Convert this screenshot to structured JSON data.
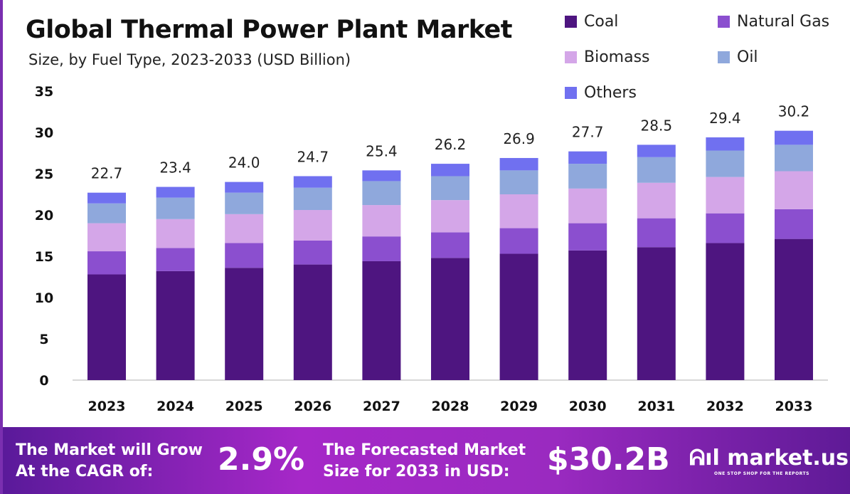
{
  "chart_data": {
    "type": "bar",
    "stacked": true,
    "title": "Global Thermal Power Plant Market",
    "subtitle": "Size, by Fuel Type, 2023-2033 (USD Billion)",
    "categories": [
      "2023",
      "2024",
      "2025",
      "2026",
      "2027",
      "2028",
      "2029",
      "2030",
      "2031",
      "2032",
      "2033"
    ],
    "series": [
      {
        "name": "Coal",
        "color": "#4e1580",
        "values": [
          12.8,
          13.2,
          13.6,
          14.0,
          14.4,
          14.8,
          15.3,
          15.7,
          16.1,
          16.6,
          17.1
        ]
      },
      {
        "name": "Natural Gas",
        "color": "#8b4fcf",
        "values": [
          2.8,
          2.8,
          3.0,
          2.9,
          3.0,
          3.1,
          3.1,
          3.3,
          3.5,
          3.6,
          3.6
        ]
      },
      {
        "name": "Biomass",
        "color": "#d4a6e8",
        "values": [
          3.4,
          3.5,
          3.5,
          3.7,
          3.8,
          3.9,
          4.1,
          4.2,
          4.3,
          4.4,
          4.6
        ]
      },
      {
        "name": "Oil",
        "color": "#8fa8dc",
        "values": [
          2.4,
          2.6,
          2.6,
          2.7,
          2.9,
          2.9,
          2.9,
          3.0,
          3.1,
          3.2,
          3.2
        ]
      },
      {
        "name": "Others",
        "color": "#7070f0",
        "values": [
          1.3,
          1.3,
          1.3,
          1.4,
          1.3,
          1.5,
          1.5,
          1.5,
          1.5,
          1.6,
          1.7
        ]
      }
    ],
    "totals": [
      "22.7",
      "23.4",
      "24.0",
      "24.7",
      "25.4",
      "26.2",
      "26.9",
      "27.7",
      "28.5",
      "29.4",
      "30.2"
    ],
    "yticks": [
      "0",
      "5",
      "10",
      "15",
      "20",
      "25",
      "30",
      "35"
    ],
    "ylim": [
      0,
      35
    ],
    "grid": false,
    "legend": "top-right"
  },
  "banner": {
    "cagr_text_1": "The Market will Grow",
    "cagr_text_2": "At the CAGR of:",
    "cagr_value": "2.9%",
    "forecast_text_1": "The Forecasted Market",
    "forecast_text_2": "Size for 2033 in USD:",
    "forecast_value": "$30.2B",
    "logo": "market.us",
    "tagline": "ONE STOP SHOP FOR THE REPORTS"
  }
}
